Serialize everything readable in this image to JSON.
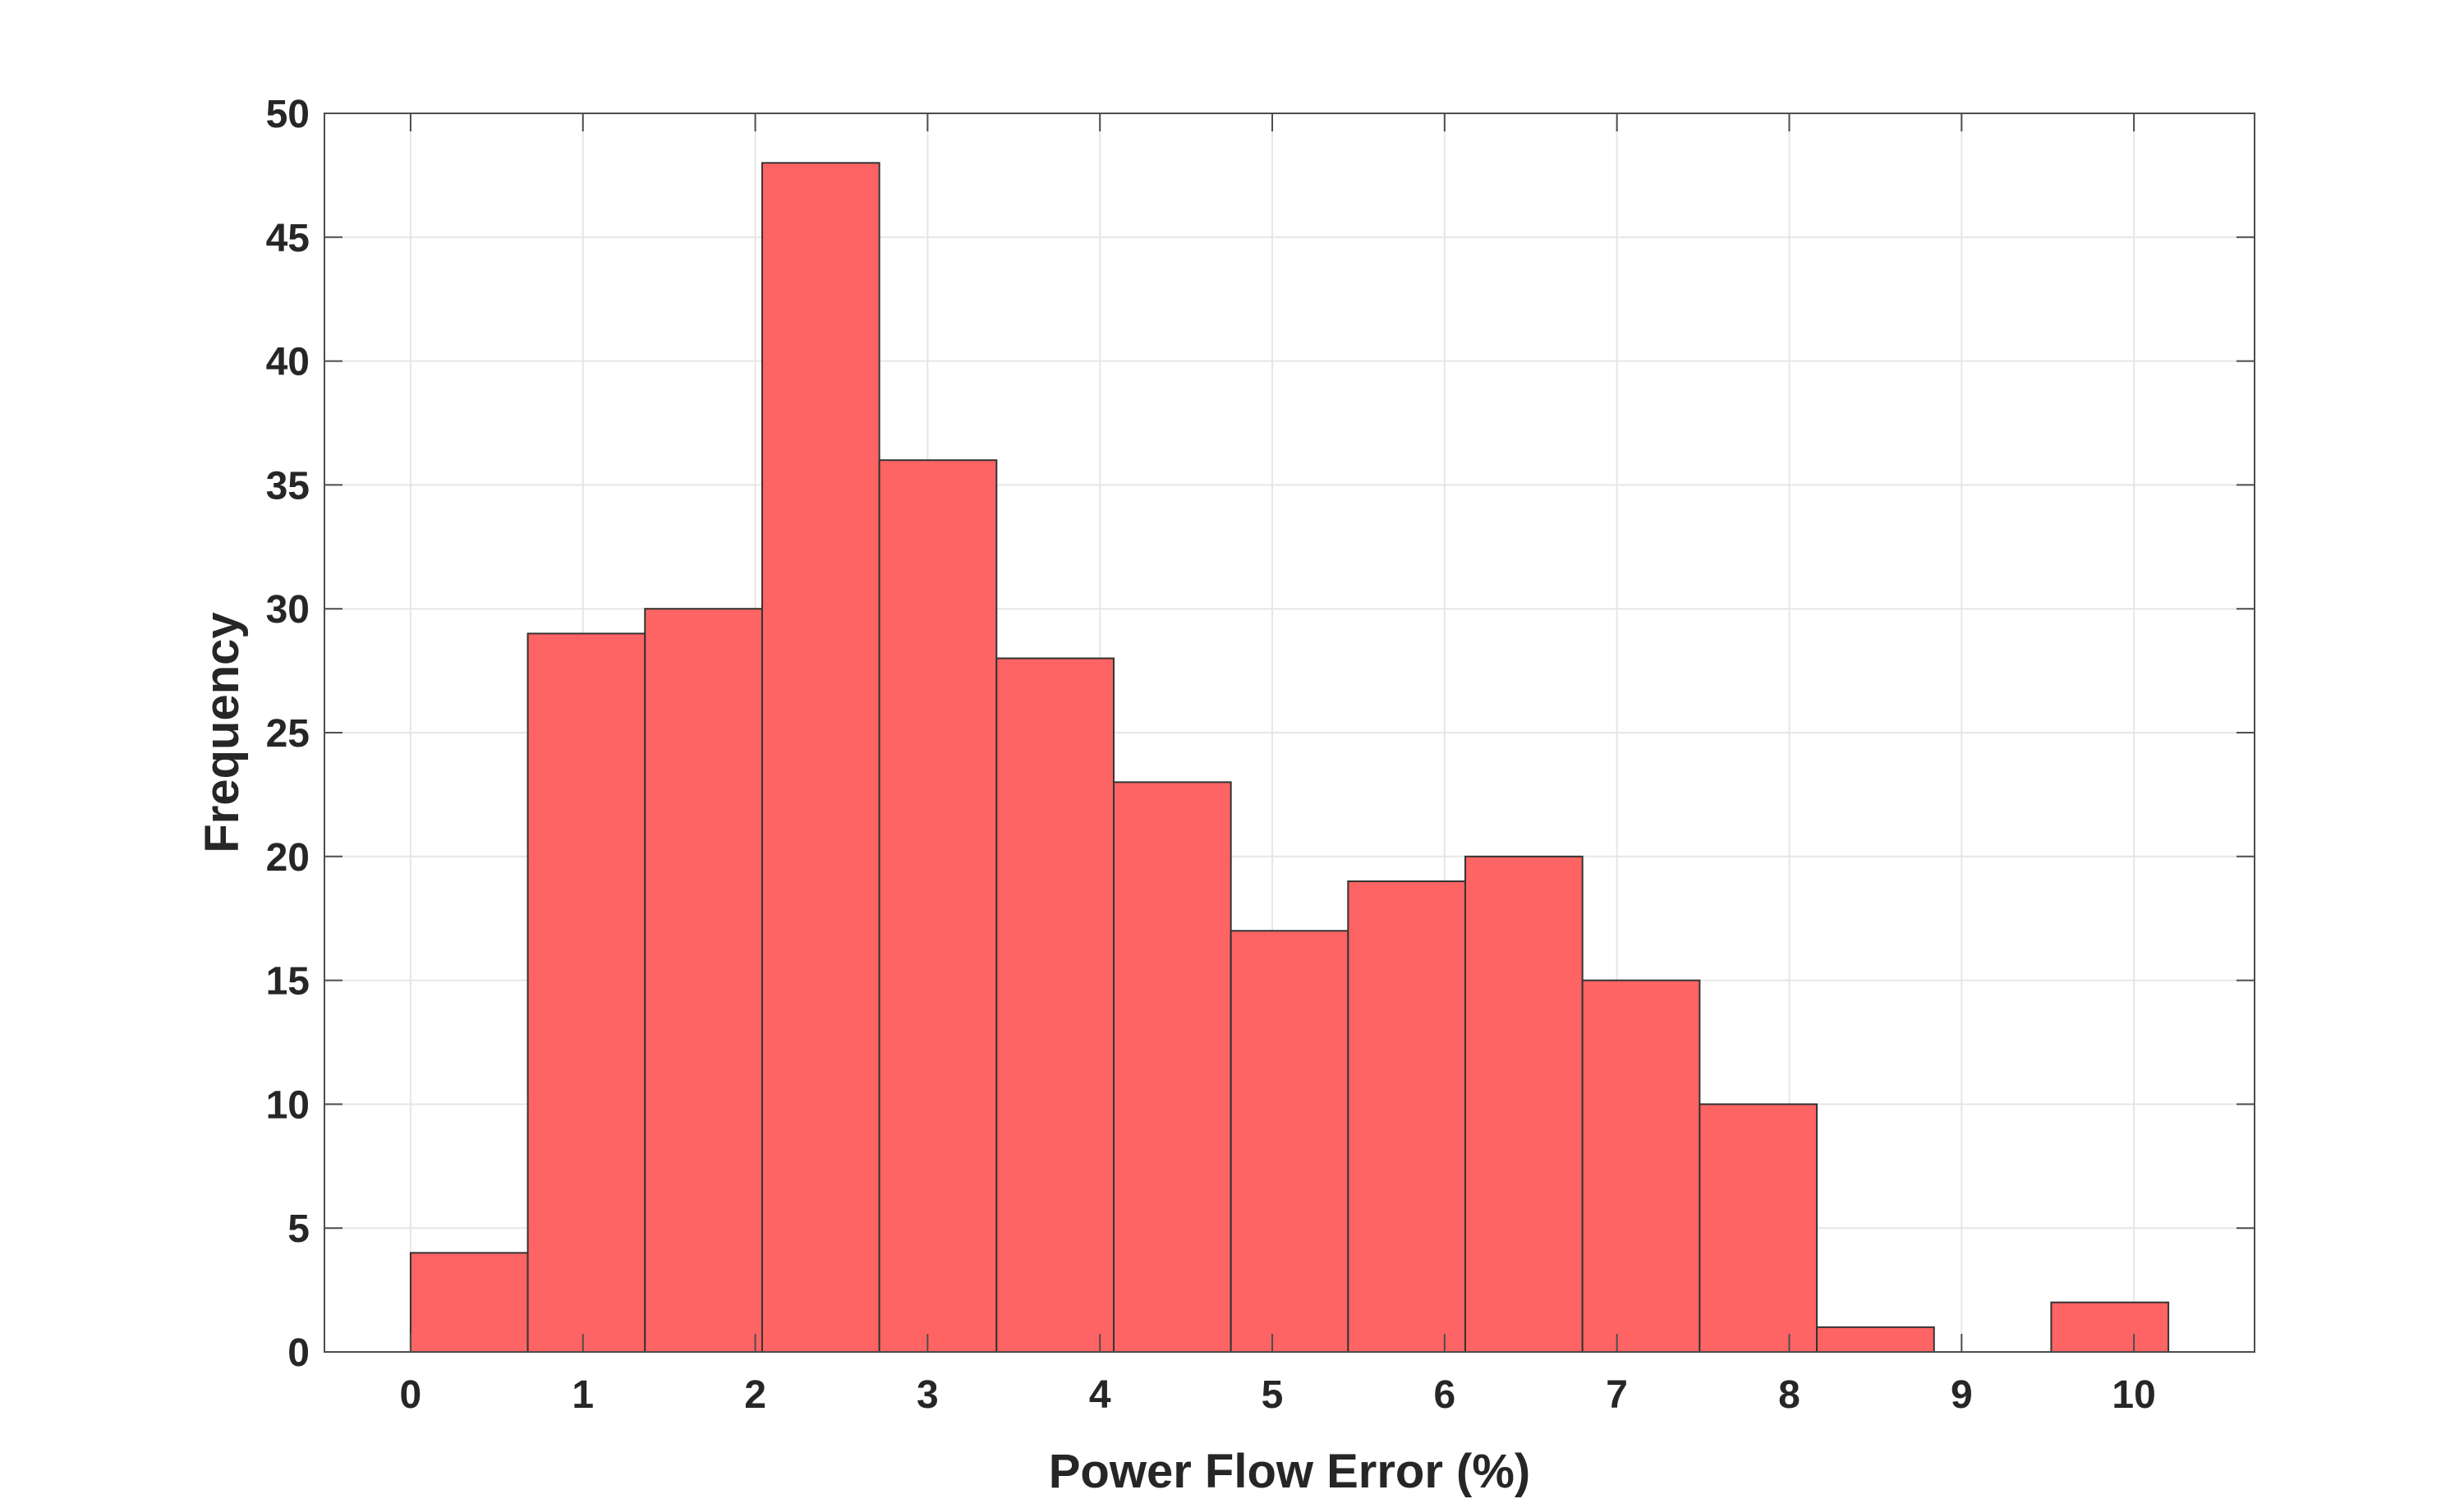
{
  "colors": {
    "bar_fill": "#ff6464",
    "bar_edge": "#333333",
    "grid": "#e6e6e6",
    "axis": "#4d4d4d",
    "text": "#262626"
  },
  "chart_data": {
    "type": "bar",
    "subtype": "histogram",
    "title": "",
    "xlabel": "Power Flow Error (%)",
    "ylabel": "Frequency",
    "xlim": [
      -0.5,
      10.7
    ],
    "ylim": [
      0,
      50
    ],
    "xticks": [
      0,
      1,
      2,
      3,
      4,
      5,
      6,
      7,
      8,
      9,
      10
    ],
    "yticks": [
      0,
      5,
      10,
      15,
      20,
      25,
      30,
      35,
      40,
      45,
      50
    ],
    "xtick_labels": [
      "0",
      "1",
      "2",
      "3",
      "4",
      "5",
      "6",
      "7",
      "8",
      "9",
      "10"
    ],
    "ytick_labels": [
      "0",
      "5",
      "10",
      "15",
      "20",
      "25",
      "30",
      "35",
      "40",
      "45",
      "50"
    ],
    "bin_edges": [
      0,
      0.68,
      1.36,
      2.04,
      2.72,
      3.4,
      4.08,
      4.76,
      5.44,
      6.12,
      6.8,
      7.48,
      8.16,
      8.84,
      9.52,
      10.2
    ],
    "values": [
      4,
      29,
      30,
      48,
      36,
      28,
      23,
      17,
      19,
      20,
      15,
      10,
      1,
      0,
      2
    ],
    "grid": true,
    "legend": "none"
  }
}
